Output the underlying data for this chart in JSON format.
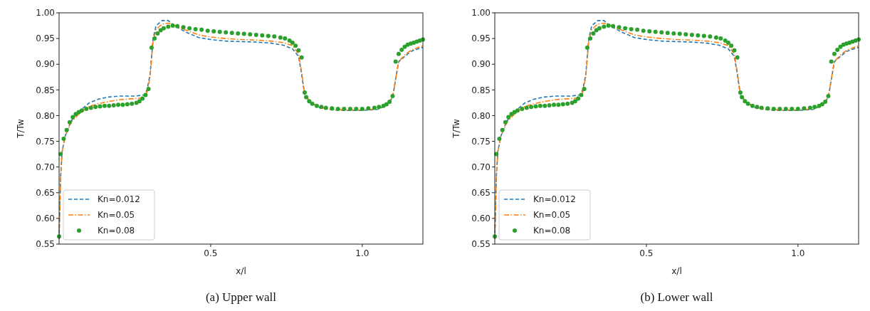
{
  "chart_data": [
    {
      "type": "line",
      "title": "(a) Upper wall",
      "xlabel": "x/l",
      "ylabel": "T/Tw",
      "xlim": [
        0,
        1.2
      ],
      "ylim": [
        0.55,
        1.0
      ],
      "xticks": [
        0.5,
        {
          "value": 1,
          "label": "1.0"
        }
      ],
      "yticks": [
        0.55,
        {
          "value": 0.6,
          "label": "0.60"
        },
        0.65,
        {
          "value": 0.7,
          "label": "0.70"
        },
        0.75,
        {
          "value": 0.8,
          "label": "0.80"
        },
        0.85,
        {
          "value": 0.9,
          "label": "0.90"
        },
        0.95,
        {
          "value": 1,
          "label": "1.00"
        }
      ],
      "legend": "bottom left",
      "grid": false,
      "series": [
        {
          "name": "Kn=0.012",
          "type": "line",
          "line_style": "dashed",
          "color": "#1f77b4",
          "x": [
            0,
            0.005,
            0.01,
            0.02,
            0.04,
            0.06,
            0.08,
            0.1,
            0.13,
            0.16,
            0.2,
            0.25,
            0.28,
            0.29,
            0.3,
            0.31,
            0.32,
            0.34,
            0.36,
            0.38,
            0.42,
            0.46,
            0.5,
            0.55,
            0.6,
            0.65,
            0.7,
            0.74,
            0.77,
            0.79,
            0.8,
            0.81,
            0.83,
            0.86,
            0.9,
            0.95,
            1.0,
            1.05,
            1.08,
            1.1,
            1.11,
            1.12,
            1.14,
            1.16,
            1.2
          ],
          "values": [
            0.56,
            0.68,
            0.73,
            0.76,
            0.79,
            0.805,
            0.815,
            0.825,
            0.832,
            0.836,
            0.838,
            0.838,
            0.84,
            0.85,
            0.88,
            0.95,
            0.975,
            0.985,
            0.985,
            0.975,
            0.962,
            0.952,
            0.948,
            0.945,
            0.944,
            0.943,
            0.941,
            0.937,
            0.93,
            0.915,
            0.88,
            0.84,
            0.825,
            0.815,
            0.811,
            0.81,
            0.81,
            0.812,
            0.82,
            0.835,
            0.87,
            0.905,
            0.915,
            0.925,
            0.933
          ]
        },
        {
          "name": "Kn=0.05",
          "type": "line",
          "line_style": "dashdot",
          "color": "#ff7f0e",
          "x": [
            0,
            0.005,
            0.01,
            0.02,
            0.04,
            0.06,
            0.08,
            0.1,
            0.15,
            0.2,
            0.27,
            0.29,
            0.3,
            0.31,
            0.32,
            0.34,
            0.36,
            0.38,
            0.42,
            0.46,
            0.5,
            0.55,
            0.6,
            0.65,
            0.7,
            0.74,
            0.77,
            0.79,
            0.8,
            0.81,
            0.83,
            0.86,
            0.9,
            0.95,
            1.0,
            1.05,
            1.08,
            1.1,
            1.11,
            1.12,
            1.14,
            1.16,
            1.2
          ],
          "values": [
            0.56,
            0.68,
            0.73,
            0.76,
            0.787,
            0.8,
            0.81,
            0.818,
            0.826,
            0.831,
            0.834,
            0.845,
            0.875,
            0.945,
            0.968,
            0.978,
            0.98,
            0.976,
            0.966,
            0.957,
            0.953,
            0.95,
            0.948,
            0.947,
            0.945,
            0.942,
            0.936,
            0.92,
            0.885,
            0.842,
            0.826,
            0.816,
            0.812,
            0.811,
            0.811,
            0.813,
            0.821,
            0.836,
            0.872,
            0.905,
            0.918,
            0.927,
            0.936
          ]
        },
        {
          "name": "Kn=0.08",
          "type": "scatter",
          "marker": "circle",
          "color": "#2ca02c",
          "x": [
            0,
            0.005,
            0.015,
            0.025,
            0.035,
            0.045,
            0.055,
            0.065,
            0.075,
            0.09,
            0.105,
            0.12,
            0.135,
            0.15,
            0.165,
            0.18,
            0.195,
            0.21,
            0.225,
            0.24,
            0.255,
            0.265,
            0.275,
            0.285,
            0.295,
            0.305,
            0.315,
            0.325,
            0.335,
            0.345,
            0.36,
            0.375,
            0.39,
            0.41,
            0.43,
            0.45,
            0.47,
            0.49,
            0.51,
            0.53,
            0.55,
            0.57,
            0.59,
            0.61,
            0.63,
            0.65,
            0.67,
            0.69,
            0.71,
            0.73,
            0.745,
            0.76,
            0.77,
            0.78,
            0.79,
            0.8,
            0.81,
            0.815,
            0.825,
            0.835,
            0.85,
            0.865,
            0.88,
            0.9,
            0.92,
            0.94,
            0.96,
            0.98,
            1.0,
            1.02,
            1.04,
            1.055,
            1.07,
            1.08,
            1.09,
            1.1,
            1.11,
            1.12,
            1.13,
            1.14,
            1.15,
            1.16,
            1.17,
            1.18,
            1.19,
            1.2
          ],
          "values": [
            0.565,
            0.725,
            0.755,
            0.772,
            0.787,
            0.797,
            0.803,
            0.807,
            0.81,
            0.813,
            0.815,
            0.817,
            0.818,
            0.819,
            0.819,
            0.82,
            0.821,
            0.821,
            0.822,
            0.823,
            0.825,
            0.828,
            0.833,
            0.84,
            0.852,
            0.932,
            0.95,
            0.96,
            0.966,
            0.97,
            0.973,
            0.975,
            0.974,
            0.972,
            0.97,
            0.968,
            0.967,
            0.965,
            0.964,
            0.963,
            0.962,
            0.961,
            0.96,
            0.959,
            0.958,
            0.957,
            0.956,
            0.955,
            0.954,
            0.952,
            0.95,
            0.946,
            0.942,
            0.936,
            0.927,
            0.913,
            0.845,
            0.836,
            0.828,
            0.823,
            0.819,
            0.817,
            0.815,
            0.814,
            0.813,
            0.813,
            0.813,
            0.813,
            0.813,
            0.814,
            0.815,
            0.817,
            0.819,
            0.822,
            0.827,
            0.838,
            0.905,
            0.92,
            0.928,
            0.934,
            0.938,
            0.94,
            0.942,
            0.944,
            0.946,
            0.948
          ]
        }
      ]
    },
    {
      "type": "line",
      "title": "(b) Lower wall",
      "xlabel": "x/l",
      "ylabel": "T/Tw",
      "xlim": [
        0,
        1.2
      ],
      "ylim": [
        0.55,
        1.0
      ],
      "xticks": [
        0.5,
        {
          "value": 1,
          "label": "1.0"
        }
      ],
      "yticks": [
        0.55,
        {
          "value": 0.6,
          "label": "0.60"
        },
        0.65,
        {
          "value": 0.7,
          "label": "0.70"
        },
        0.75,
        {
          "value": 0.8,
          "label": "0.80"
        },
        0.85,
        {
          "value": 0.9,
          "label": "0.90"
        },
        0.95,
        {
          "value": 1,
          "label": "1.00"
        }
      ],
      "legend": "bottom left",
      "grid": false,
      "series": [
        {
          "name": "Kn=0.012",
          "type": "line",
          "line_style": "dashed",
          "color": "#1f77b4",
          "x": [
            0,
            0.005,
            0.01,
            0.02,
            0.04,
            0.06,
            0.08,
            0.1,
            0.13,
            0.16,
            0.2,
            0.25,
            0.28,
            0.29,
            0.3,
            0.31,
            0.32,
            0.34,
            0.36,
            0.38,
            0.42,
            0.46,
            0.5,
            0.55,
            0.6,
            0.65,
            0.7,
            0.74,
            0.77,
            0.79,
            0.8,
            0.81,
            0.83,
            0.86,
            0.9,
            0.95,
            1.0,
            1.05,
            1.08,
            1.1,
            1.11,
            1.12,
            1.14,
            1.16,
            1.2
          ],
          "values": [
            0.56,
            0.68,
            0.73,
            0.76,
            0.79,
            0.805,
            0.815,
            0.825,
            0.832,
            0.836,
            0.838,
            0.838,
            0.84,
            0.85,
            0.88,
            0.95,
            0.975,
            0.985,
            0.985,
            0.975,
            0.962,
            0.952,
            0.948,
            0.945,
            0.944,
            0.943,
            0.941,
            0.937,
            0.93,
            0.915,
            0.88,
            0.84,
            0.825,
            0.815,
            0.811,
            0.81,
            0.81,
            0.812,
            0.82,
            0.835,
            0.87,
            0.905,
            0.915,
            0.925,
            0.933
          ]
        },
        {
          "name": "Kn=0.05",
          "type": "line",
          "line_style": "dashdot",
          "color": "#ff7f0e",
          "x": [
            0,
            0.005,
            0.01,
            0.02,
            0.04,
            0.06,
            0.08,
            0.1,
            0.15,
            0.2,
            0.27,
            0.29,
            0.3,
            0.31,
            0.32,
            0.34,
            0.36,
            0.38,
            0.42,
            0.46,
            0.5,
            0.55,
            0.6,
            0.65,
            0.7,
            0.74,
            0.77,
            0.79,
            0.8,
            0.81,
            0.83,
            0.86,
            0.9,
            0.95,
            1.0,
            1.05,
            1.08,
            1.1,
            1.11,
            1.12,
            1.14,
            1.16,
            1.2
          ],
          "values": [
            0.56,
            0.68,
            0.73,
            0.76,
            0.787,
            0.8,
            0.81,
            0.818,
            0.826,
            0.831,
            0.834,
            0.845,
            0.875,
            0.945,
            0.968,
            0.978,
            0.98,
            0.976,
            0.966,
            0.957,
            0.953,
            0.95,
            0.948,
            0.947,
            0.945,
            0.942,
            0.936,
            0.92,
            0.885,
            0.842,
            0.826,
            0.816,
            0.812,
            0.811,
            0.811,
            0.813,
            0.821,
            0.836,
            0.872,
            0.905,
            0.918,
            0.927,
            0.936
          ]
        },
        {
          "name": "Kn=0.08",
          "type": "scatter",
          "marker": "circle",
          "color": "#2ca02c",
          "x": [
            0,
            0.005,
            0.015,
            0.025,
            0.035,
            0.045,
            0.055,
            0.065,
            0.075,
            0.09,
            0.105,
            0.12,
            0.135,
            0.15,
            0.165,
            0.18,
            0.195,
            0.21,
            0.225,
            0.24,
            0.255,
            0.265,
            0.275,
            0.285,
            0.295,
            0.305,
            0.315,
            0.325,
            0.335,
            0.345,
            0.36,
            0.375,
            0.39,
            0.41,
            0.43,
            0.45,
            0.47,
            0.49,
            0.51,
            0.53,
            0.55,
            0.57,
            0.59,
            0.61,
            0.63,
            0.65,
            0.67,
            0.69,
            0.71,
            0.73,
            0.745,
            0.76,
            0.77,
            0.78,
            0.79,
            0.8,
            0.81,
            0.815,
            0.825,
            0.835,
            0.85,
            0.865,
            0.88,
            0.9,
            0.92,
            0.94,
            0.96,
            0.98,
            1.0,
            1.02,
            1.04,
            1.055,
            1.07,
            1.08,
            1.09,
            1.1,
            1.11,
            1.12,
            1.13,
            1.14,
            1.15,
            1.16,
            1.17,
            1.18,
            1.19,
            1.2
          ],
          "values": [
            0.565,
            0.725,
            0.755,
            0.772,
            0.787,
            0.797,
            0.803,
            0.807,
            0.81,
            0.813,
            0.815,
            0.817,
            0.818,
            0.819,
            0.819,
            0.82,
            0.821,
            0.821,
            0.822,
            0.823,
            0.825,
            0.828,
            0.833,
            0.84,
            0.852,
            0.932,
            0.95,
            0.96,
            0.966,
            0.97,
            0.973,
            0.975,
            0.974,
            0.972,
            0.97,
            0.968,
            0.967,
            0.965,
            0.964,
            0.963,
            0.962,
            0.961,
            0.96,
            0.959,
            0.958,
            0.957,
            0.956,
            0.955,
            0.954,
            0.952,
            0.95,
            0.946,
            0.942,
            0.936,
            0.927,
            0.913,
            0.845,
            0.836,
            0.828,
            0.823,
            0.819,
            0.817,
            0.815,
            0.814,
            0.813,
            0.813,
            0.813,
            0.813,
            0.813,
            0.814,
            0.815,
            0.817,
            0.819,
            0.822,
            0.827,
            0.838,
            0.905,
            0.92,
            0.928,
            0.934,
            0.938,
            0.94,
            0.942,
            0.944,
            0.946,
            0.948
          ]
        }
      ]
    }
  ]
}
